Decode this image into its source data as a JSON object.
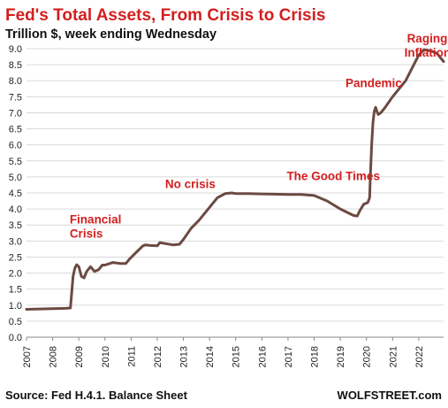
{
  "chart_data": {
    "type": "line",
    "title": "Fed's Total Assets, From Crisis to Crisis",
    "subtitle": "Trillion $, week ending Wednesday",
    "source": "Source: Fed H.4.1. Balance Sheet",
    "brand": "WOLFSTREET.com",
    "ylim": [
      0,
      9
    ],
    "xlim": [
      2007,
      2022.95
    ],
    "y_ticks": [
      "0.0",
      "0.5",
      "1.0",
      "1.5",
      "2.0",
      "2.5",
      "3.0",
      "3.5",
      "4.0",
      "4.5",
      "5.0",
      "5.5",
      "6.0",
      "6.5",
      "7.0",
      "7.5",
      "8.0",
      "8.5",
      "9.0"
    ],
    "x_ticks": [
      "2007",
      "2008",
      "2009",
      "2010",
      "2011",
      "2012",
      "2013",
      "2014",
      "2015",
      "2016",
      "2017",
      "2018",
      "2019",
      "2020",
      "2021",
      "2022"
    ],
    "grid": "horizontal",
    "colors": {
      "title": "#d31f1f",
      "annotation": "#d31f1f",
      "series": "#6b4a42"
    },
    "annotations": [
      {
        "text": "Financial",
        "x": 2008.65,
        "y": 3.55
      },
      {
        "text": "Crisis",
        "x": 2008.65,
        "y": 3.1
      },
      {
        "text": "No crisis",
        "x": 2012.3,
        "y": 4.65
      },
      {
        "text": "The Good Times",
        "x": 2016.95,
        "y": 4.9
      },
      {
        "text": "Pandemic",
        "x": 2019.2,
        "y": 7.8
      },
      {
        "text": "Raging",
        "x": 2021.55,
        "y": 9.2
      },
      {
        "text": "Inflation",
        "x": 2021.45,
        "y": 8.75
      }
    ],
    "series": [
      {
        "x": [
          2007.0,
          2007.5,
          2008.0,
          2008.5,
          2008.68,
          2008.72,
          2008.78,
          2008.85,
          2008.92,
          2009.0,
          2009.1,
          2009.2,
          2009.3,
          2009.45,
          2009.6,
          2009.75,
          2009.9,
          2010.0,
          2010.3,
          2010.6,
          2010.8,
          2010.95,
          2011.2,
          2011.45,
          2011.55,
          2011.75,
          2012.0,
          2012.1,
          2012.3,
          2012.6,
          2012.85,
          2013.0,
          2013.3,
          2013.6,
          2014.0,
          2014.3,
          2014.6,
          2014.85,
          2015.0,
          2015.5,
          2016.0,
          2016.5,
          2017.0,
          2017.5,
          2018.0,
          2018.5,
          2019.0,
          2019.5,
          2019.65,
          2019.75,
          2019.9,
          2020.05,
          2020.12,
          2020.15,
          2020.2,
          2020.25,
          2020.3,
          2020.35,
          2020.4,
          2020.45,
          2020.55,
          2020.7,
          2021.0,
          2021.5,
          2022.0,
          2022.2,
          2022.35,
          2022.5,
          2022.7,
          2022.95
        ],
        "y": [
          0.87,
          0.88,
          0.89,
          0.9,
          0.91,
          1.3,
          1.9,
          2.15,
          2.26,
          2.2,
          1.9,
          1.85,
          2.05,
          2.2,
          2.05,
          2.1,
          2.25,
          2.25,
          2.33,
          2.3,
          2.3,
          2.45,
          2.65,
          2.85,
          2.88,
          2.86,
          2.85,
          2.95,
          2.92,
          2.88,
          2.9,
          3.05,
          3.4,
          3.65,
          4.05,
          4.35,
          4.48,
          4.5,
          4.48,
          4.48,
          4.47,
          4.46,
          4.45,
          4.45,
          4.42,
          4.25,
          4.0,
          3.8,
          3.78,
          3.95,
          4.15,
          4.2,
          4.35,
          5.0,
          6.0,
          6.7,
          7.05,
          7.17,
          7.05,
          6.95,
          7.0,
          7.15,
          7.5,
          8.0,
          8.8,
          8.97,
          8.95,
          8.92,
          8.85,
          8.6
        ]
      }
    ]
  }
}
